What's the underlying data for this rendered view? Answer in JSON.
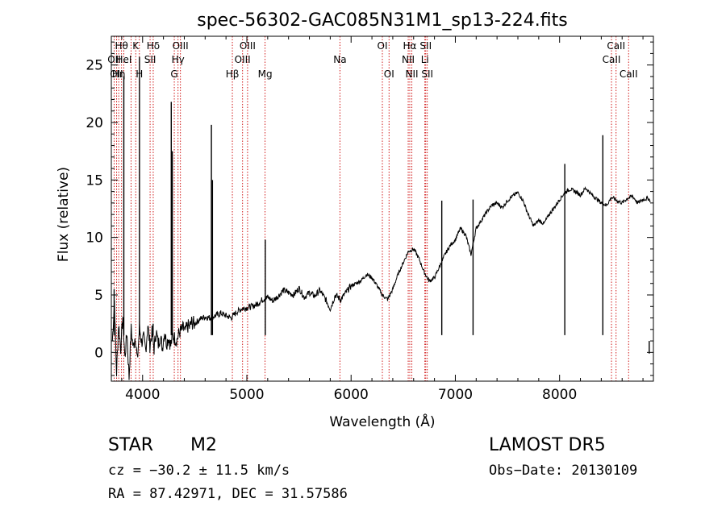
{
  "chart_data": {
    "type": "line",
    "title": "spec-56302-GAC085N31M1_sp13-224.fits",
    "xlabel": "Wavelength (Å)",
    "ylabel": "Flux (relative)",
    "xlim": [
      3700,
      8900
    ],
    "ylim": [
      -2.5,
      27.5
    ],
    "xticks": [
      4000,
      5000,
      6000,
      7000,
      8000
    ],
    "yticks": [
      0,
      5,
      10,
      15,
      20,
      25
    ],
    "grid": false,
    "line_color": "#000000",
    "marker_color": "#cc0000",
    "series": [
      {
        "x": [
          3710,
          3730,
          3750,
          3770,
          3790,
          3810,
          3830,
          3850,
          3870,
          3890,
          3910,
          3930,
          3950,
          3970,
          3990,
          4010,
          4030,
          4050,
          4070,
          4090,
          4110,
          4130,
          4150,
          4170,
          4190,
          4210,
          4230,
          4250,
          4270,
          4290,
          4310,
          4330,
          4350,
          4370,
          4390,
          4410,
          4430,
          4450,
          4470,
          4500,
          4550,
          4600,
          4650,
          4700,
          4750,
          4800,
          4850,
          4900,
          4950,
          5000,
          5050,
          5100,
          5150,
          5200,
          5250,
          5300,
          5350,
          5400,
          5450,
          5500,
          5550,
          5600,
          5650,
          5700,
          5750,
          5800,
          5850,
          5900,
          5950,
          6000,
          6050,
          6100,
          6150,
          6200,
          6250,
          6300,
          6350,
          6400,
          6450,
          6500,
          6550,
          6600,
          6650,
          6700,
          6750,
          6800,
          6850,
          6900,
          6950,
          7000,
          7050,
          7100,
          7150,
          7200,
          7250,
          7300,
          7350,
          7400,
          7450,
          7500,
          7550,
          7600,
          7650,
          7700,
          7750,
          7800,
          7850,
          7900,
          7950,
          8000,
          8050,
          8100,
          8150,
          8200,
          8250,
          8300,
          8350,
          8400,
          8450,
          8500,
          8550,
          8600,
          8650,
          8700,
          8750,
          8800,
          8850,
          8870
        ],
        "y": [
          1.0,
          4.5,
          -1.8,
          2.5,
          0.3,
          3.1,
          -0.5,
          1.8,
          -2.2,
          2.0,
          0.4,
          1.5,
          -0.8,
          2.2,
          0.9,
          1.2,
          0.2,
          2.4,
          0.6,
          1.7,
          0.3,
          1.9,
          0.7,
          1.4,
          0.4,
          1.8,
          0.8,
          1.3,
          0.6,
          1.5,
          1.2,
          1.1,
          1.7,
          1.9,
          2.1,
          1.8,
          2.3,
          2.2,
          2.6,
          2.5,
          2.9,
          3.1,
          3.0,
          3.2,
          3.4,
          3.2,
          3.0,
          3.5,
          3.8,
          3.9,
          4.0,
          4.2,
          4.6,
          4.8,
          4.5,
          4.9,
          5.4,
          5.2,
          5.0,
          5.6,
          4.8,
          5.2,
          4.9,
          5.4,
          4.7,
          3.8,
          5.0,
          4.6,
          5.2,
          5.8,
          6.0,
          6.3,
          6.8,
          6.5,
          5.8,
          5.0,
          4.6,
          5.5,
          6.8,
          7.8,
          8.8,
          9.0,
          8.2,
          7.0,
          6.2,
          6.5,
          7.5,
          8.5,
          9.3,
          9.8,
          10.8,
          10.2,
          8.5,
          10.8,
          11.5,
          12.2,
          12.8,
          13.0,
          12.6,
          13.2,
          13.6,
          13.9,
          13.2,
          12.0,
          11.0,
          11.5,
          11.2,
          12.0,
          12.6,
          13.3,
          13.9,
          14.2,
          14.0,
          13.7,
          14.3,
          13.8,
          13.4,
          13.0,
          12.8,
          13.5,
          13.2,
          13.0,
          13.4,
          13.6,
          13.0,
          13.3,
          13.4,
          13.2
        ],
        "spikes": [
          {
            "x": 3727,
            "peak": 5.5
          },
          {
            "x": 3820,
            "peak": 24.0
          },
          {
            "x": 3970,
            "peak": 25.7
          },
          {
            "x": 4101,
            "peak": 2.5
          },
          {
            "x": 4275,
            "peak": 21.8
          },
          {
            "x": 4285,
            "peak": 17.5
          },
          {
            "x": 4660,
            "peak": 19.8
          },
          {
            "x": 4670,
            "peak": 15.0
          },
          {
            "x": 5177,
            "peak": 9.8
          },
          {
            "x": 6870,
            "peak": 13.2
          },
          {
            "x": 7170,
            "peak": 13.3
          },
          {
            "x": 8050,
            "peak": 16.4
          },
          {
            "x": 8415,
            "peak": 18.9
          },
          {
            "x": 8860,
            "peak": 1.0,
            "drop": -0.1
          }
        ]
      }
    ],
    "lines": [
      {
        "x": 3727,
        "label": "OII",
        "row": 2
      },
      {
        "x": 3750,
        "label": "OII",
        "row": 3
      },
      {
        "x": 3771,
        "label": "Hη",
        "row": 3
      },
      {
        "x": 3798,
        "label": "Hθ",
        "row": 1
      },
      {
        "x": 3820,
        "label": "HeI",
        "row": 2
      },
      {
        "x": 3890,
        "label": "",
        "row": 0
      },
      {
        "x": 3934,
        "label": "K",
        "row": 1
      },
      {
        "x": 3969,
        "label": "H",
        "row": 3
      },
      {
        "x": 4072,
        "label": "SII",
        "row": 2
      },
      {
        "x": 4102,
        "label": "Hδ",
        "row": 1
      },
      {
        "x": 4304,
        "label": "G",
        "row": 3
      },
      {
        "x": 4340,
        "label": "Hγ",
        "row": 2
      },
      {
        "x": 4363,
        "label": "OIII",
        "row": 1
      },
      {
        "x": 4861,
        "label": "Hβ",
        "row": 3
      },
      {
        "x": 4959,
        "label": "OIII",
        "row": 2
      },
      {
        "x": 5007,
        "label": "OIII",
        "row": 1
      },
      {
        "x": 5175,
        "label": "Mg",
        "row": 3
      },
      {
        "x": 5893,
        "label": "Na",
        "row": 2
      },
      {
        "x": 6300,
        "label": "OI",
        "row": 1
      },
      {
        "x": 6364,
        "label": "OI",
        "row": 3
      },
      {
        "x": 6548,
        "label": "NII",
        "row": 2
      },
      {
        "x": 6563,
        "label": "Hα",
        "row": 1
      },
      {
        "x": 6583,
        "label": "NII",
        "row": 3
      },
      {
        "x": 6708,
        "label": "Li",
        "row": 2
      },
      {
        "x": 6716,
        "label": "SII",
        "row": 1
      },
      {
        "x": 6731,
        "label": "SII",
        "row": 3
      },
      {
        "x": 8498,
        "label": "CaII",
        "row": 2
      },
      {
        "x": 8542,
        "label": "CaII",
        "row": 1
      },
      {
        "x": 8662,
        "label": "CaII",
        "row": 3
      }
    ]
  },
  "info": {
    "class": "STAR",
    "subclass": "M2",
    "survey": "LAMOST DR5",
    "cz": "cz = −30.2 ± 11.5 km/s",
    "obs_date": "Obs−Date: 20130109",
    "coords": "RA =  87.42971, DEC =  31.57586"
  }
}
